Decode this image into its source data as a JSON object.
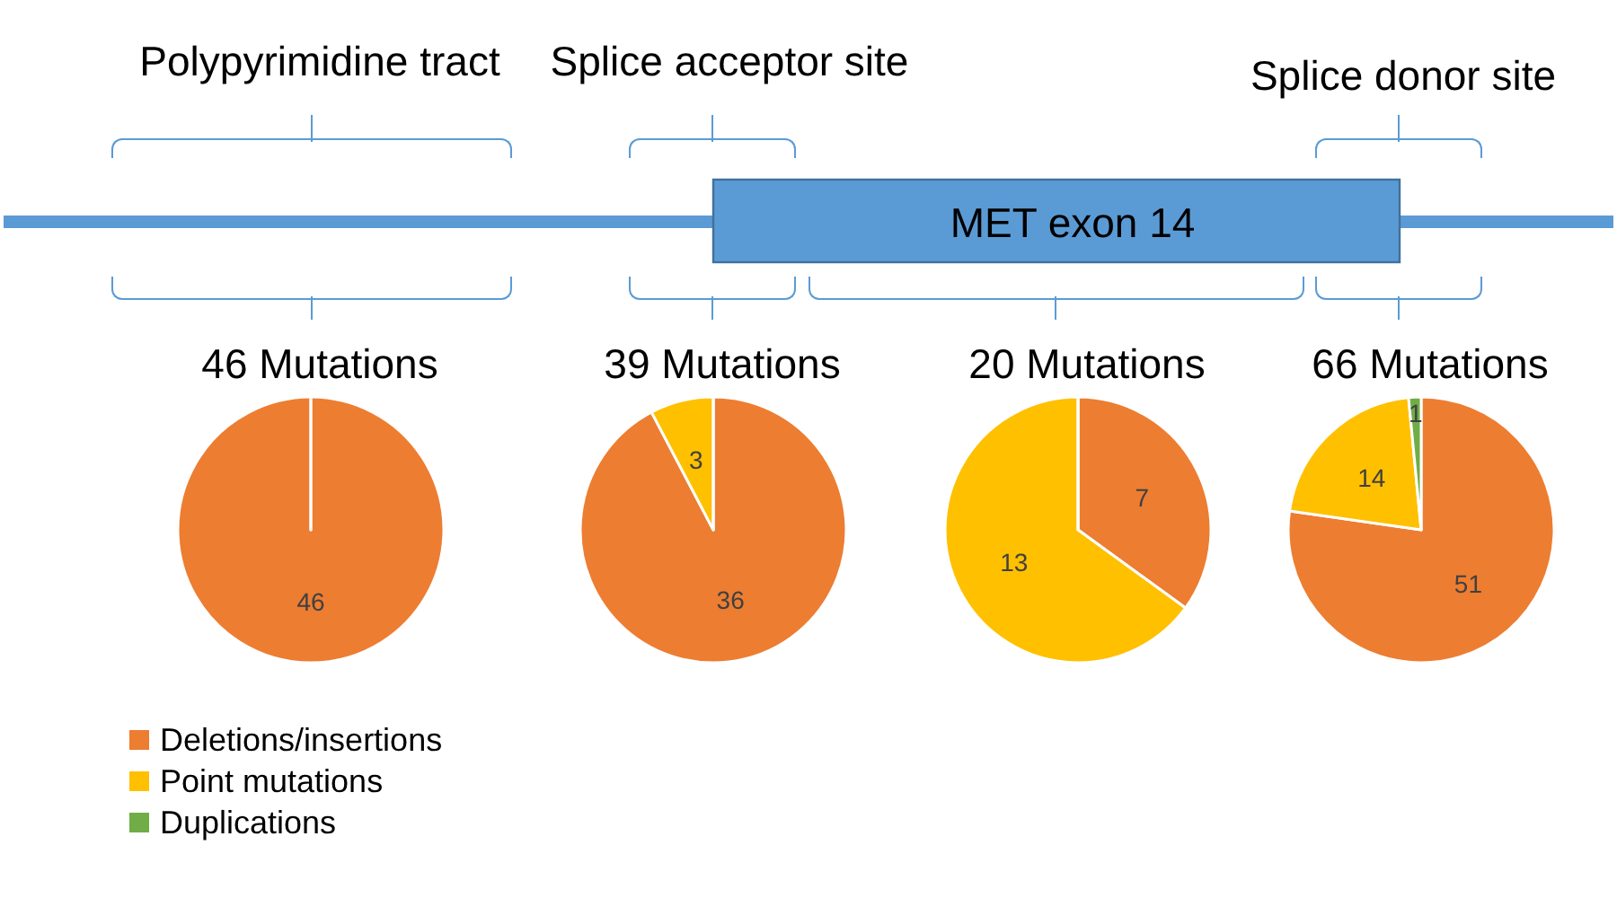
{
  "chart_data": [
    {
      "type": "other",
      "annotations": [
        "Polypyrimidine tract",
        "Splice acceptor site",
        "Splice donor site",
        "MET exon 14"
      ]
    },
    {
      "type": "pie",
      "categories": [
        "Deletions/insertions",
        "Point mutations",
        "Duplications"
      ],
      "colors": [
        "#ed7d31",
        "#ffc000",
        "#70ad47"
      ],
      "legend": "bottom left",
      "series": [
        {
          "name": "46 Mutations",
          "values": [
            46,
            0,
            0
          ],
          "value_labels": [
            "46",
            null,
            null
          ]
        },
        {
          "name": "39 Mutations",
          "values": [
            36,
            3,
            0
          ],
          "value_labels": [
            "36",
            "3",
            null
          ]
        },
        {
          "name": "20 Mutations",
          "values": [
            7,
            13,
            0
          ],
          "value_labels": [
            "7",
            "13",
            null
          ]
        },
        {
          "name": "66 Mutations",
          "values": [
            51,
            14,
            1
          ],
          "value_labels": [
            "51",
            "14",
            "1"
          ]
        }
      ]
    }
  ]
}
